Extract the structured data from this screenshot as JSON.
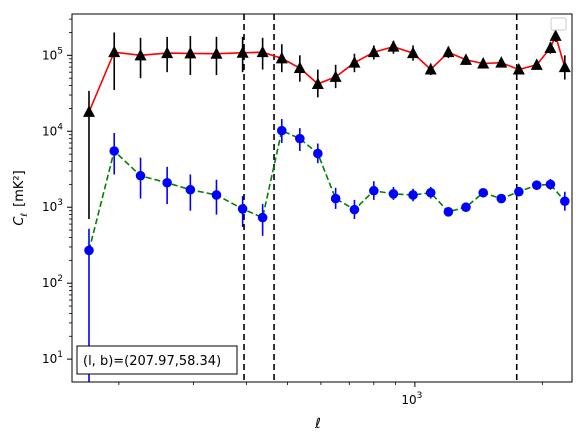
{
  "chart_data": {
    "type": "line",
    "xlabel": "ℓ",
    "ylabel_main": "C",
    "ylabel_sub": "ℓ",
    "ylabel_unit": "[mK²]",
    "x_scale": "log",
    "y_scale": "log",
    "xlim": [
      155,
      2350
    ],
    "ylim": [
      5,
      350000
    ],
    "x_ticks": [
      {
        "value": 1000,
        "base": "10",
        "exp": "3"
      }
    ],
    "y_ticks": [
      {
        "value": 10,
        "base": "10",
        "exp": "1"
      },
      {
        "value": 100,
        "base": "10",
        "exp": "2"
      },
      {
        "value": 1000,
        "base": "10",
        "exp": "3"
      },
      {
        "value": 10000,
        "base": "10",
        "exp": "4"
      },
      {
        "value": 100000,
        "base": "10",
        "exp": "5"
      }
    ],
    "annotation": "(l, b)=(207.97,58.34)",
    "legend": "upper right (empty)",
    "vlines": [
      395,
      465,
      1740
    ],
    "series": [
      {
        "marker": "triangle",
        "color": "#000000",
        "line_color": "#ff0000",
        "line_style": "solid",
        "points": [
          {
            "x": 170,
            "y": 18000,
            "lo": 700,
            "hi": 34000
          },
          {
            "x": 195,
            "y": 110000,
            "lo": 35000,
            "hi": 200000
          },
          {
            "x": 225,
            "y": 100000,
            "lo": 50000,
            "hi": 170000
          },
          {
            "x": 260,
            "y": 107000,
            "lo": 60000,
            "hi": 175000
          },
          {
            "x": 295,
            "y": 106000,
            "lo": 55000,
            "hi": 180000
          },
          {
            "x": 340,
            "y": 105000,
            "lo": 55000,
            "hi": 175000
          },
          {
            "x": 392,
            "y": 108000,
            "lo": 60000,
            "hi": 175000
          },
          {
            "x": 437,
            "y": 110000,
            "lo": 65000,
            "hi": 170000
          },
          {
            "x": 485,
            "y": 91000,
            "lo": 60000,
            "hi": 140000
          },
          {
            "x": 535,
            "y": 68000,
            "lo": 45000,
            "hi": 100000
          },
          {
            "x": 590,
            "y": 42000,
            "lo": 28000,
            "hi": 65000
          },
          {
            "x": 650,
            "y": 52000,
            "lo": 37000,
            "hi": 75000
          },
          {
            "x": 720,
            "y": 80000,
            "lo": 60000,
            "hi": 105000
          },
          {
            "x": 800,
            "y": 110000,
            "lo": 88000,
            "hi": 135000
          },
          {
            "x": 890,
            "y": 130000,
            "lo": 105000,
            "hi": 155000
          },
          {
            "x": 990,
            "y": 107000,
            "lo": 85000,
            "hi": 135000
          },
          {
            "x": 1090,
            "y": 65000,
            "lo": 55000,
            "hi": 78000
          },
          {
            "x": 1200,
            "y": 110000,
            "lo": 92000,
            "hi": 130000
          },
          {
            "x": 1320,
            "y": 87000,
            "lo": 75000,
            "hi": 100000
          },
          {
            "x": 1450,
            "y": 78000,
            "lo": 70000,
            "hi": 88000
          },
          {
            "x": 1600,
            "y": 80000,
            "lo": 72000,
            "hi": 90000
          },
          {
            "x": 1760,
            "y": 65000,
            "lo": 58000,
            "hi": 73000
          },
          {
            "x": 1940,
            "y": 75000,
            "lo": 67000,
            "hi": 84000
          },
          {
            "x": 2090,
            "y": 125000,
            "lo": 105000,
            "hi": 150000
          },
          {
            "x": 2150,
            "y": 180000,
            "lo": 150000,
            "hi": 215000
          },
          {
            "x": 2260,
            "y": 70000,
            "lo": 48000,
            "hi": 100000
          }
        ]
      },
      {
        "marker": "circle",
        "color": "#0000ff",
        "line_color": "#008000",
        "line_style": "dashed",
        "points": [
          {
            "x": 170,
            "y": 270,
            "lo": 5,
            "hi": 520
          },
          {
            "x": 195,
            "y": 5500,
            "lo": 2700,
            "hi": 9500
          },
          {
            "x": 225,
            "y": 2600,
            "lo": 1300,
            "hi": 4500
          },
          {
            "x": 260,
            "y": 2100,
            "lo": 1100,
            "hi": 3400
          },
          {
            "x": 295,
            "y": 1700,
            "lo": 900,
            "hi": 2700
          },
          {
            "x": 340,
            "y": 1450,
            "lo": 800,
            "hi": 2300
          },
          {
            "x": 392,
            "y": 950,
            "lo": 550,
            "hi": 1400
          },
          {
            "x": 437,
            "y": 730,
            "lo": 420,
            "hi": 1100
          },
          {
            "x": 485,
            "y": 10200,
            "lo": 7000,
            "hi": 14500
          },
          {
            "x": 535,
            "y": 8000,
            "lo": 5500,
            "hi": 11000
          },
          {
            "x": 590,
            "y": 5100,
            "lo": 3800,
            "hi": 6900
          },
          {
            "x": 650,
            "y": 1300,
            "lo": 950,
            "hi": 1800
          },
          {
            "x": 720,
            "y": 930,
            "lo": 700,
            "hi": 1250
          },
          {
            "x": 800,
            "y": 1650,
            "lo": 1250,
            "hi": 2200
          },
          {
            "x": 890,
            "y": 1500,
            "lo": 1250,
            "hi": 1850
          },
          {
            "x": 990,
            "y": 1450,
            "lo": 1200,
            "hi": 1750
          },
          {
            "x": 1090,
            "y": 1550,
            "lo": 1300,
            "hi": 1850
          },
          {
            "x": 1200,
            "y": 870,
            "lo": 760,
            "hi": 1000
          },
          {
            "x": 1320,
            "y": 1000,
            "lo": 880,
            "hi": 1150
          },
          {
            "x": 1450,
            "y": 1550,
            "lo": 1350,
            "hi": 1750
          },
          {
            "x": 1600,
            "y": 1300,
            "lo": 1150,
            "hi": 1450
          },
          {
            "x": 1760,
            "y": 1600,
            "lo": 1420,
            "hi": 1800
          },
          {
            "x": 1940,
            "y": 1950,
            "lo": 1700,
            "hi": 2250
          },
          {
            "x": 2090,
            "y": 2000,
            "lo": 1700,
            "hi": 2350
          },
          {
            "x": 2260,
            "y": 1200,
            "lo": 900,
            "hi": 1600
          }
        ]
      }
    ]
  }
}
